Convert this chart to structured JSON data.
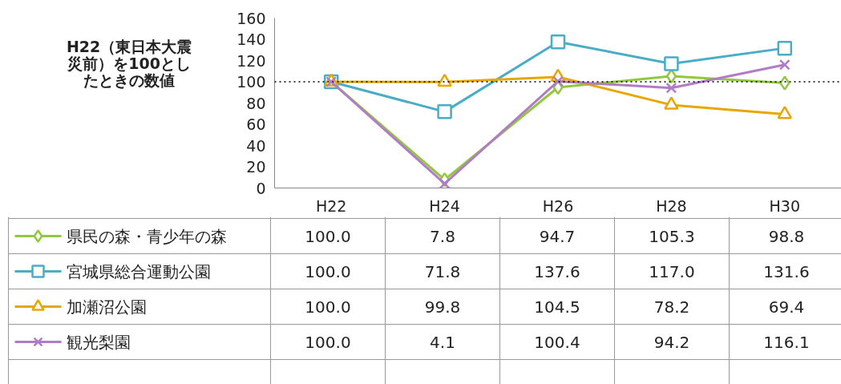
{
  "chart_data": {
    "type": "line",
    "ylabel": "H22（東日本大震災前）を100としたときの数値",
    "categories": [
      "H22",
      "H24",
      "H26",
      "H28",
      "H30"
    ],
    "series": [
      {
        "name": "県民の森・青少年の森",
        "color": "#92c83e",
        "marker": "diamond",
        "values": [
          100.0,
          7.8,
          94.7,
          105.3,
          98.8
        ],
        "value_labels": [
          "100.0",
          "7.8",
          "94.7",
          "105.3",
          "98.8"
        ]
      },
      {
        "name": "宮城県総合運動公園",
        "color": "#4bacc6",
        "marker": "square",
        "values": [
          100.0,
          71.8,
          137.6,
          117.0,
          131.6
        ],
        "value_labels": [
          "100.0",
          "71.8",
          "137.6",
          "117.0",
          "131.6"
        ]
      },
      {
        "name": "加瀬沼公園",
        "color": "#e6a800",
        "marker": "triangle",
        "values": [
          100.0,
          99.8,
          104.5,
          78.2,
          69.4
        ],
        "value_labels": [
          "100.0",
          "99.8",
          "104.5",
          "78.2",
          "69.4"
        ]
      },
      {
        "name": "観光梨園",
        "color": "#b07cc6",
        "marker": "cross",
        "values": [
          100.0,
          4.1,
          100.4,
          94.2,
          116.1
        ],
        "value_labels": [
          "100.0",
          "4.1",
          "100.4",
          "94.2",
          "116.1"
        ]
      }
    ],
    "ylim": [
      0,
      160
    ],
    "yticks": [
      0,
      20,
      40,
      60,
      80,
      100,
      120,
      140,
      160
    ],
    "ref_lines": [
      {
        "axis": "y",
        "value": 100,
        "color": "#000000",
        "line_style": "dotted"
      }
    ],
    "grid": false,
    "legend": "bottom"
  }
}
